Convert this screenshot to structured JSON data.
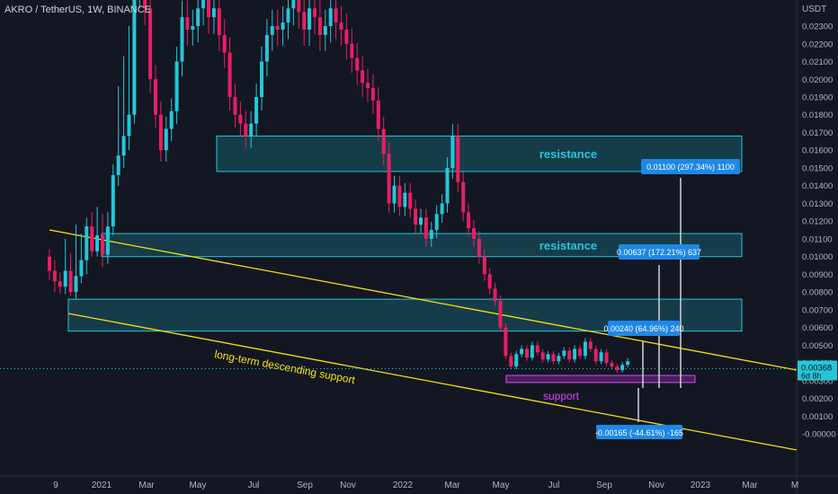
{
  "header": {
    "symbol_title": "AKRO / TetherUS, 1W, BINANCE",
    "price_unit": "USDT"
  },
  "colors": {
    "background": "#131722",
    "bull": "#26c6da",
    "bear": "#e91e63",
    "zone_stroke": "#26c6da",
    "trendline": "#f7e018",
    "support_zone": "#e040fb",
    "measure_label_bg": "#1e88e5",
    "current_price_bg": "#26c6da",
    "axis_text": "#b2b5be"
  },
  "chart_data": {
    "type": "candlestick",
    "x_axis_ticks": [
      "9",
      "2021",
      "Mar",
      "May",
      "Jul",
      "Sep",
      "Nov",
      "2022",
      "Mar",
      "May",
      "Jul",
      "Sep",
      "Nov",
      "2023",
      "Mar",
      "M"
    ],
    "y_axis_ticks": [
      "0.02300",
      "0.02200",
      "0.02100",
      "0.02000",
      "0.01900",
      "0.01800",
      "0.01700",
      "0.01600",
      "0.01500",
      "0.01400",
      "0.01300",
      "0.01200",
      "0.01100",
      "0.01000",
      "0.00900",
      "0.00800",
      "0.00700",
      "0.00600",
      "0.00500",
      "0.00400",
      "0.00300",
      "0.00200",
      "0.00100",
      "-0.00000"
    ],
    "y_range": [
      -0.0006,
      0.0235
    ],
    "current_price": {
      "value": "0.00368",
      "countdown": "6d 8h"
    },
    "zones": [
      {
        "label": "resistance",
        "low": 0.0148,
        "high": 0.0168
      },
      {
        "label": "resistance",
        "low": 0.01,
        "high": 0.0113
      },
      {
        "label": "",
        "low": 0.0058,
        "high": 0.0076
      },
      {
        "label": "support",
        "low": 0.0029,
        "high": 0.0033
      }
    ],
    "trendline_label": "long-term descending support",
    "measurements": [
      {
        "label": "0.01100 (297.34%) 1100"
      },
      {
        "label": "0.00637 (172.21%) 637"
      },
      {
        "label": "0.00240 (64.96%) 240"
      },
      {
        "label": "-0.00165 (-44.61%) -165"
      }
    ],
    "candles": [
      [
        0.01,
        0.0092,
        0.0104,
        0.0087
      ],
      [
        0.0092,
        0.0086,
        0.0098,
        0.008
      ],
      [
        0.0086,
        0.0083,
        0.0091,
        0.0079
      ],
      [
        0.0083,
        0.0092,
        0.011,
        0.0079
      ],
      [
        0.0092,
        0.008,
        0.0102,
        0.0078
      ],
      [
        0.008,
        0.0089,
        0.0118,
        0.0076
      ],
      [
        0.0089,
        0.0098,
        0.0113,
        0.0085
      ],
      [
        0.0098,
        0.0117,
        0.0122,
        0.009
      ],
      [
        0.0117,
        0.0103,
        0.0125,
        0.01
      ],
      [
        0.0103,
        0.0112,
        0.0128,
        0.01
      ],
      [
        0.0112,
        0.0101,
        0.0124,
        0.0094
      ],
      [
        0.0101,
        0.0117,
        0.0125,
        0.0096
      ],
      [
        0.0117,
        0.0146,
        0.0152,
        0.0112
      ],
      [
        0.0146,
        0.0157,
        0.0196,
        0.014
      ],
      [
        0.0157,
        0.0168,
        0.0213,
        0.015
      ],
      [
        0.0168,
        0.018,
        0.023,
        0.016
      ],
      [
        0.018,
        0.025,
        0.026,
        0.0175
      ]
    ]
  }
}
